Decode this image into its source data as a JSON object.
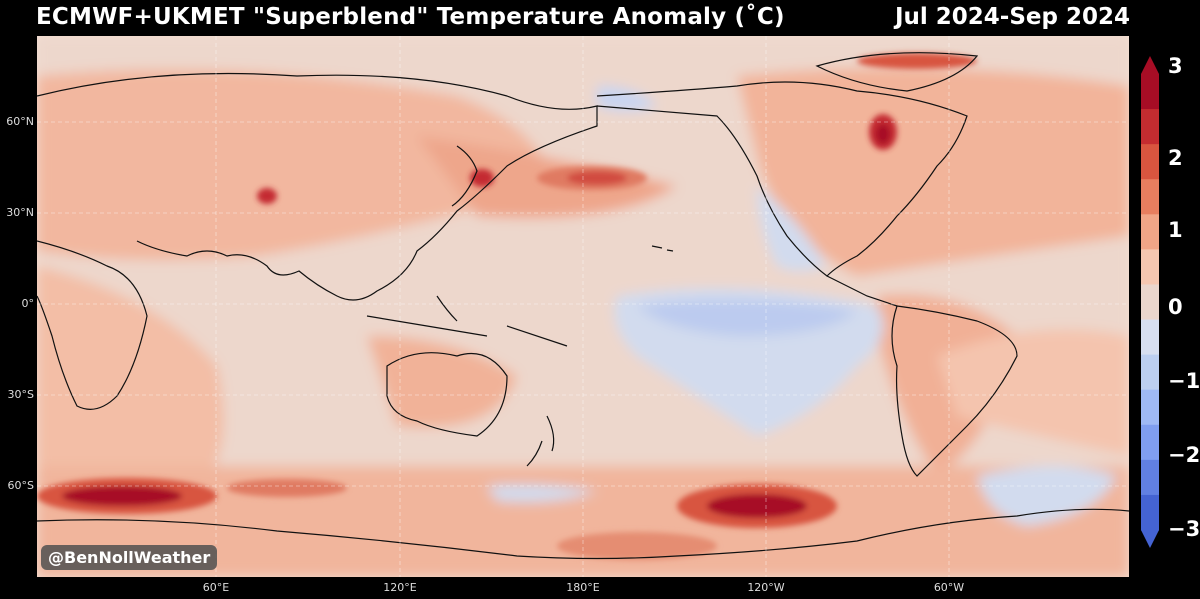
{
  "header": {
    "title": "ECMWF+UKMET \"Superblend\" Temperature Anomaly (˚C)",
    "period": "Jul 2024-Sep 2024"
  },
  "map": {
    "lat_labels": [
      "60°N",
      "30°N",
      "0°",
      "30°S",
      "60°S"
    ],
    "lon_labels": [
      "60°E",
      "120°E",
      "180°E",
      "120°W",
      "60°W"
    ]
  },
  "colorbar": {
    "ticks": [
      "3",
      "2",
      "1",
      "0",
      "−1",
      "−2",
      "−3"
    ],
    "colors": [
      "#a70d25",
      "#c42c30",
      "#d8553f",
      "#e77e5f",
      "#f0a587",
      "#f5c7b1",
      "#ead6cd",
      "#d7dff0",
      "#bccff0",
      "#9fb9f5",
      "#809ef0",
      "#6180e3",
      "#4463d3"
    ]
  },
  "watermark": "@BenNollWeather"
}
